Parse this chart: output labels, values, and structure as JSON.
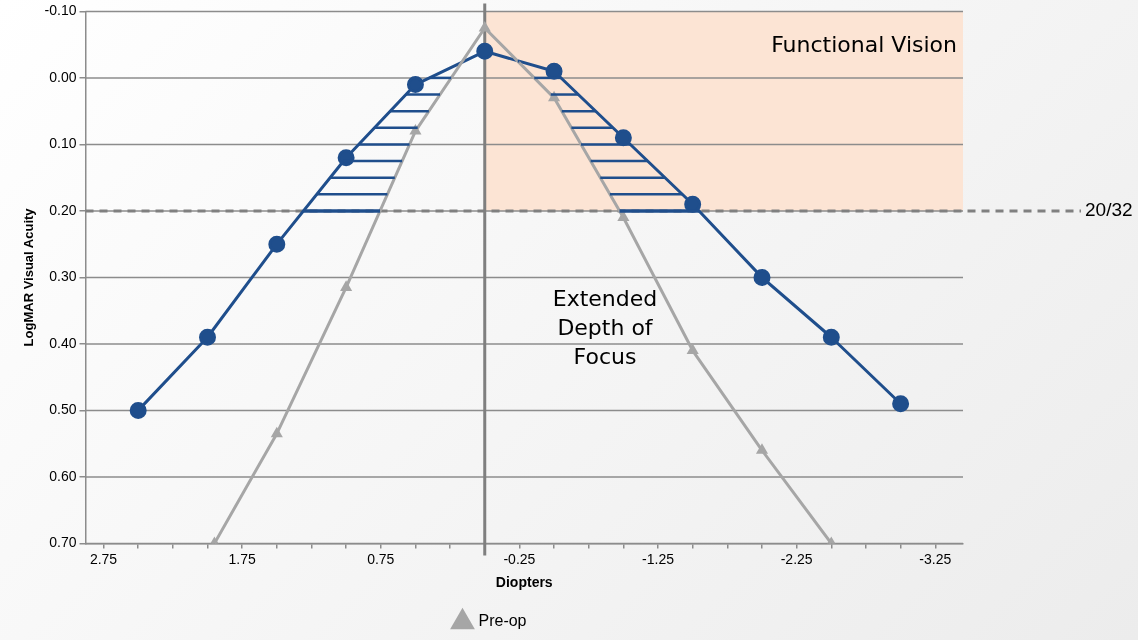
{
  "chart_data": {
    "type": "line",
    "xlabel": "Diopters",
    "ylabel": "LogMAR Visual Acuity",
    "xlim": [
      2.88,
      -3.45
    ],
    "ylim": [
      0.7,
      -0.1
    ],
    "xticks": [
      2.75,
      {
        "value": 2.5,
        "label": null
      },
      {
        "value": 2.25,
        "label": null
      },
      {
        "value": 2.0,
        "label": null
      },
      1.75,
      {
        "value": 1.5,
        "label": null
      },
      {
        "value": 1.25,
        "label": null
      },
      {
        "value": 1.0,
        "label": null
      },
      0.75,
      {
        "value": 0.5,
        "label": null
      },
      {
        "value": 0.25,
        "label": null
      },
      {
        "value": 0,
        "label": null
      },
      -0.25,
      {
        "value": -0.5,
        "label": null
      },
      {
        "value": -0.75,
        "label": null
      },
      {
        "value": -1.0,
        "label": null
      },
      -1.25,
      {
        "value": -1.5,
        "label": null
      },
      {
        "value": -1.75,
        "label": null
      },
      {
        "value": -2.0,
        "label": null
      },
      -2.25,
      {
        "value": -2.5,
        "label": null
      },
      {
        "value": -2.75,
        "label": null
      },
      {
        "value": -3.0,
        "label": null
      },
      -3.25
    ],
    "yticks": [
      {
        "value": -0.1,
        "label": "-0.10"
      },
      {
        "value": 0,
        "label": "0.00"
      },
      {
        "value": 0.1,
        "label": "0.10"
      },
      {
        "value": 0.2,
        "label": "0.20"
      },
      {
        "value": 0.3,
        "label": "0.30"
      },
      {
        "value": 0.4,
        "label": "0.40"
      },
      {
        "value": 0.5,
        "label": "0.50"
      },
      {
        "value": 0.6,
        "label": "0.60"
      },
      {
        "value": 0.7,
        "label": "0.70"
      }
    ],
    "grid": "y",
    "legend": "bottom",
    "series": [
      {
        "name": "Pre-op",
        "color": "#a6a6a6",
        "marker": "triangle",
        "x": [
          1.95,
          1.5,
          1,
          0.5,
          0,
          -0.5,
          -1,
          -1.5,
          -2,
          -2.5
        ],
        "values": [
          0.7,
          0.535,
          0.315,
          0.08,
          -0.075,
          0.03,
          0.21,
          0.41,
          0.56,
          0.7
        ]
      },
      {
        "color": "#1f4e8c",
        "marker": "circle",
        "x": [
          2.5,
          2,
          1.5,
          1,
          0.5,
          0,
          -0.5,
          -1,
          -1.5,
          -2,
          -2.5,
          -3
        ],
        "values": [
          0.5,
          0.39,
          0.25,
          0.12,
          0.01,
          -0.04,
          -0.01,
          0.09,
          0.19,
          0.3,
          0.39,
          0.49
        ]
      }
    ],
    "ref_lines": [
      {
        "axis": "y",
        "value": 0.2,
        "label": "20/32",
        "color": "#808080",
        "line_style": "dashed"
      },
      {
        "axis": "x",
        "value": 0,
        "color": "#7f7f7f",
        "line_style": "solid"
      }
    ],
    "bands": [
      {
        "axis": "x",
        "from": 0,
        "to": -3.45,
        "label": "Functional Vision",
        "color": "#fce4d4"
      }
    ],
    "annotations": [
      "Extended Depth of Focus"
    ]
  }
}
